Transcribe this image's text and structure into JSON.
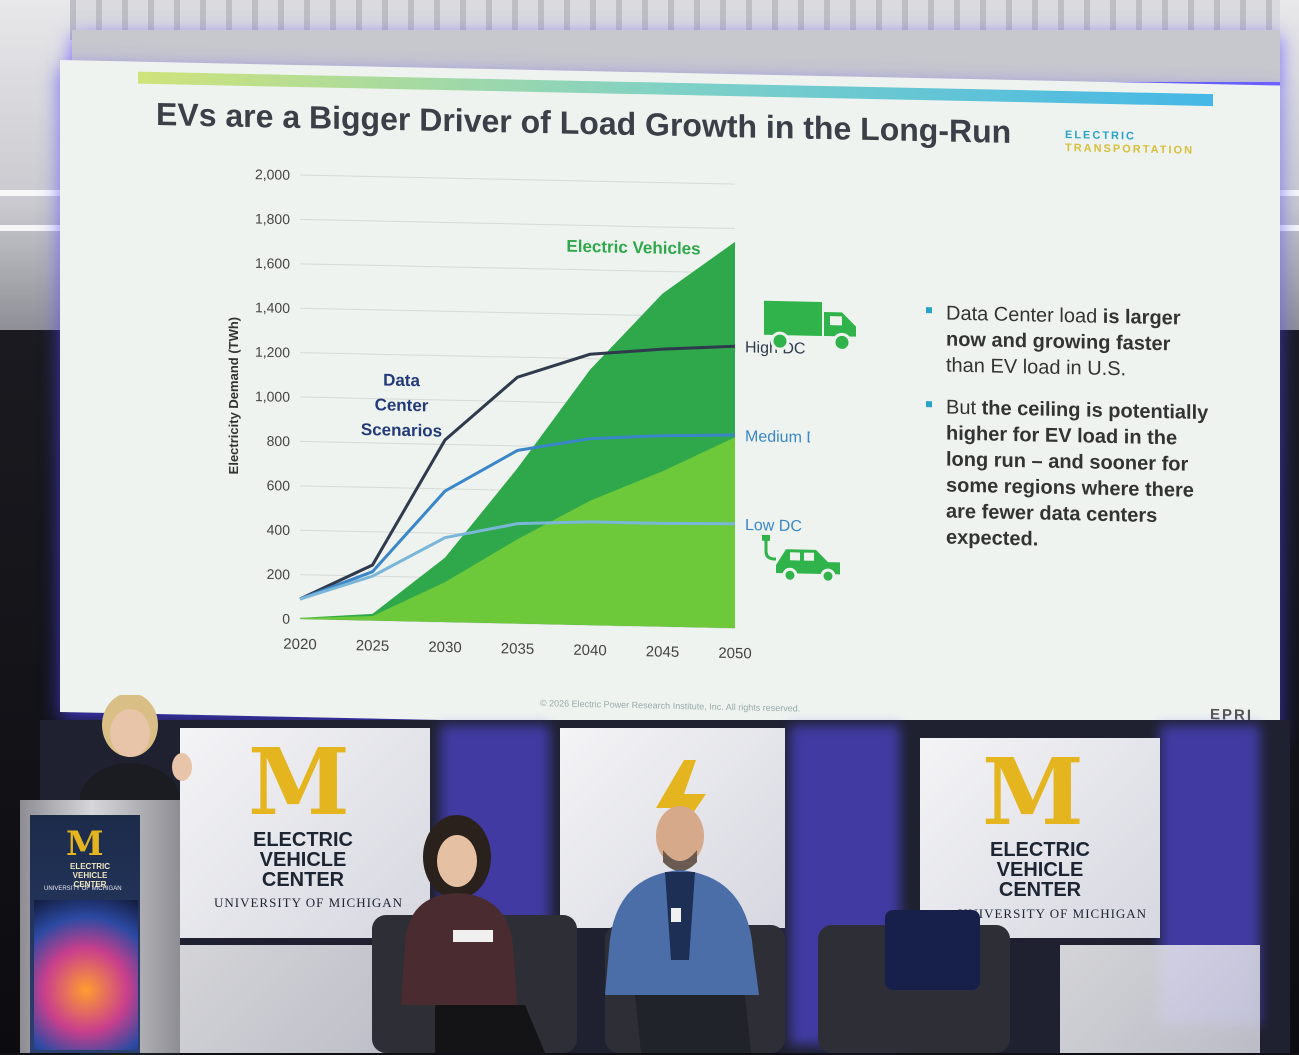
{
  "slide": {
    "title": "EVs are a Bigger Driver of Load Growth in the Long-Run",
    "brand_line1": "ELECTRIC",
    "brand_line2": "TRANSPORTATION",
    "copyright": "© 2026 Electric Power Research Institute, Inc. All rights reserved.",
    "logo": "EPRI",
    "bullets": [
      [
        "Data Center load ",
        "is larger",
        "now and growing faster",
        "than EV load in U.S."
      ],
      [
        "But ",
        "the ceiling is potentially",
        "higher for EV load in the",
        "long run – and sooner for",
        "some regions where there",
        "are fewer data centers",
        "expected."
      ]
    ],
    "icons": [
      "truck-icon",
      "ev-car-icon"
    ]
  },
  "chart_data": {
    "type": "area",
    "ylabel": "Electricity Demand (TWh)",
    "xlabel": "",
    "ylim": [
      0,
      2000
    ],
    "yticks": [
      "0",
      "200",
      "400",
      "600",
      "800",
      "1,000",
      "1,200",
      "1,400",
      "1,600",
      "1,800",
      "2,000"
    ],
    "x": [
      2020,
      2025,
      2030,
      2035,
      2040,
      2045,
      2050
    ],
    "xticks": [
      "2020",
      "2025",
      "2030",
      "2035",
      "2040",
      "2045",
      "2050"
    ],
    "areas": [
      {
        "name": "Electric Vehicles",
        "role": "upper",
        "color": "#2ea84a",
        "values": [
          5,
          30,
          290,
          700,
          1150,
          1500,
          1740
        ]
      },
      {
        "name": "",
        "role": "lower",
        "color": "#6dc83a",
        "values": [
          5,
          20,
          180,
          380,
          560,
          700,
          860
        ]
      }
    ],
    "series": [
      {
        "name": "High DC",
        "color": "#2f3a4c",
        "values": [
          90,
          250,
          820,
          1110,
          1220,
          1250,
          1270
        ]
      },
      {
        "name": "Medium DC",
        "color": "#3a86c8",
        "values": [
          90,
          220,
          590,
          780,
          840,
          860,
          870
        ]
      },
      {
        "name": "Low DC",
        "color": "#7ab6d8",
        "values": [
          90,
          200,
          380,
          450,
          465,
          465,
          470
        ]
      }
    ],
    "annotations": [
      "Data",
      "Center",
      "Scenarios"
    ],
    "grid": true
  },
  "stage": {
    "backdrop_M": "M",
    "backdrop_title_lines": [
      "ELECTRIC",
      "VEHICLE",
      "CENTER"
    ],
    "backdrop_univ": "UNIVERSITY OF MICHIGAN",
    "backdrop_univ_partial": "UNIVERSITY OF MICHIGAN",
    "podium_M": "M",
    "podium_lines": [
      "ELECTRIC",
      "VEHICLE",
      "CENTER"
    ],
    "podium_univ": "UNIVERSITY OF MICHIGAN"
  }
}
